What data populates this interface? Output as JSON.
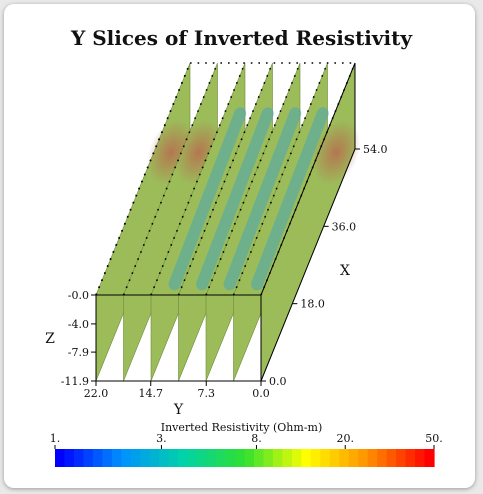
{
  "chart_data": {
    "type": "3d-slices",
    "title": "Y Slices of Inverted Resistivity",
    "axes": {
      "x": {
        "label": "X",
        "ticks": [
          "0.0",
          "18.0",
          "36.0",
          "54.0"
        ],
        "range": [
          0,
          54
        ]
      },
      "y": {
        "label": "Y",
        "ticks": [
          "0.0",
          "7.3",
          "14.7",
          "22.0"
        ],
        "range": [
          0,
          22
        ]
      },
      "z": {
        "label": "Z",
        "ticks": [
          "-0.0",
          "-4.0",
          "-7.9",
          "-11.9"
        ],
        "range": [
          -11.9,
          0
        ]
      }
    },
    "slices_y": [
      0.0,
      3.67,
      7.33,
      11.0,
      14.67,
      18.33,
      22.0
    ],
    "colorbar": {
      "title": "Inverted Resistivity (Ohm-m)",
      "ticks": [
        "1.",
        "3.",
        "8.",
        "20.",
        "50."
      ],
      "scale": "log",
      "range": [
        1,
        50
      ],
      "colors": [
        "#0000ff",
        "#0090ff",
        "#00d2aa",
        "#30e030",
        "#ffff00",
        "#ff9000",
        "#ff0000"
      ]
    },
    "slice_colors": {
      "base": "#9cbc5a",
      "high": "#b86a4e",
      "low": "#4aa6b6"
    }
  }
}
